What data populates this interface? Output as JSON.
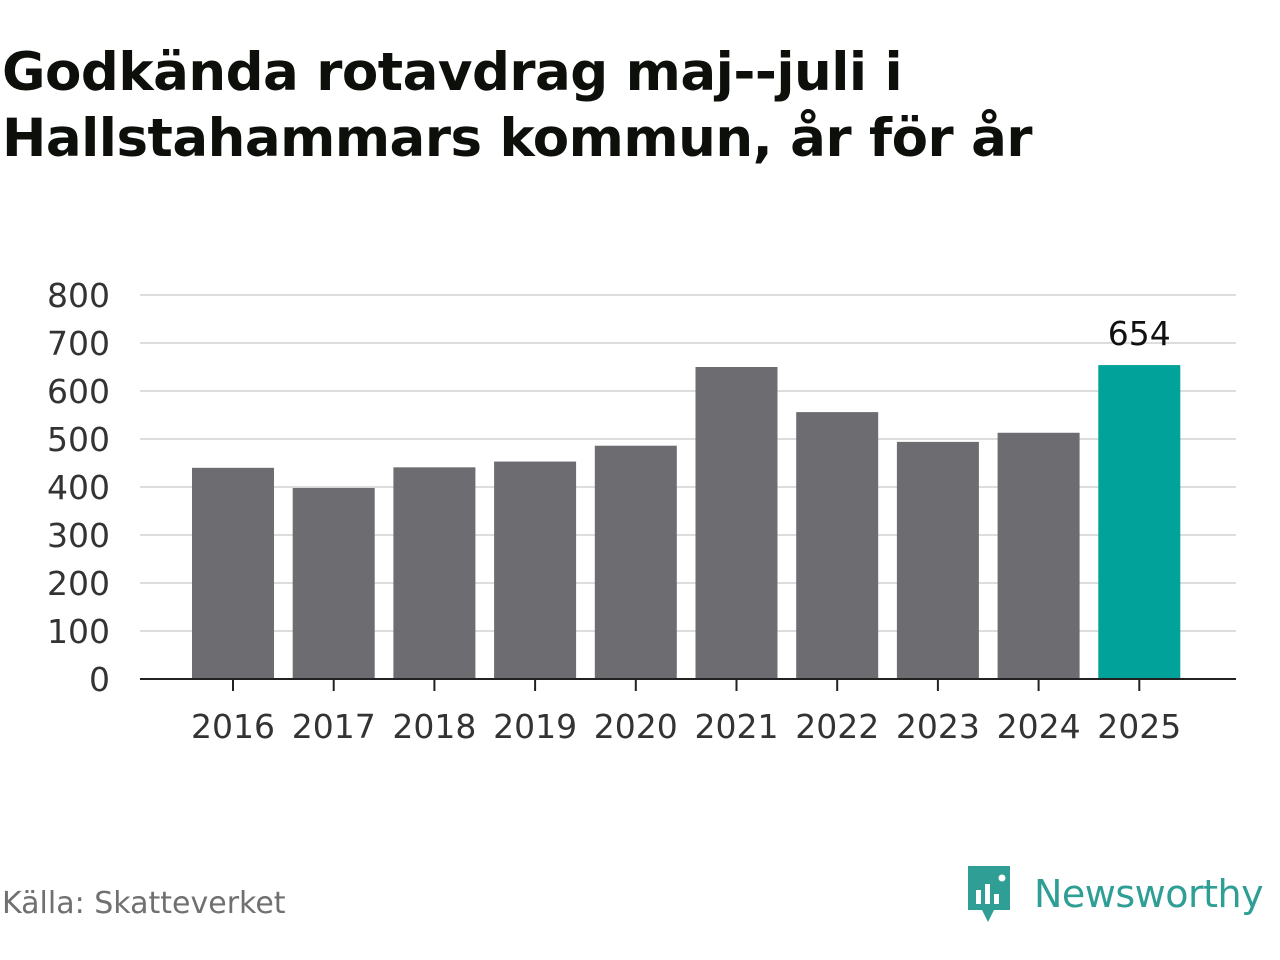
{
  "title": "Godkända rotavdrag maj--juli i Hallstahammars kommun, år för år",
  "source": "Källa: Skatteverket",
  "brand": {
    "name": "Newsworthy",
    "icon": "newsworthy-logo-icon",
    "color": "#2f9e95"
  },
  "colors": {
    "bar": "#6d6c71",
    "highlight": "#00a29a",
    "grid": "#dddddd",
    "axis": "#222222"
  },
  "chart_data": {
    "type": "bar",
    "categories": [
      "2016",
      "2017",
      "2018",
      "2019",
      "2020",
      "2021",
      "2022",
      "2023",
      "2024",
      "2025"
    ],
    "values": [
      440,
      398,
      441,
      453,
      486,
      650,
      556,
      494,
      513,
      654
    ],
    "highlight_index": 9,
    "data_labels": {
      "2025": "654"
    },
    "yticks": [
      0,
      100,
      200,
      300,
      400,
      500,
      600,
      700,
      800
    ],
    "ylim": [
      0,
      800
    ],
    "grid": true,
    "xlabel": "",
    "ylabel": ""
  }
}
